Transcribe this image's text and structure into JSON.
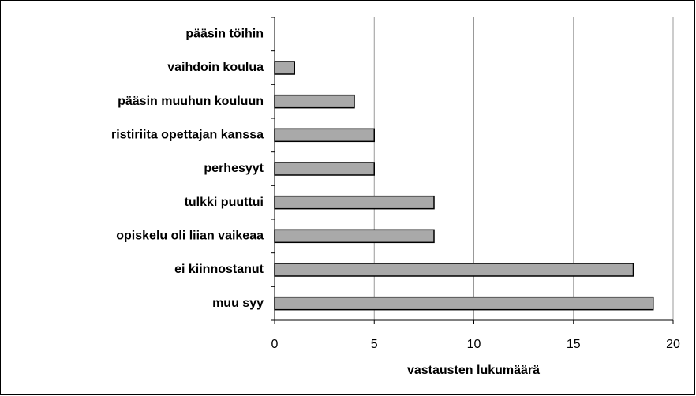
{
  "chart_data": {
    "type": "bar",
    "orientation": "horizontal",
    "x_label": "vastausten lukumäärä",
    "categories": [
      "pääsin töihin",
      "vaihdoin koulua",
      "pääsin muuhun kouluun",
      "ristiriita opettajan kanssa",
      "perhesyyt",
      "tulkki puuttui",
      "opiskelu oli liian vaikeaa",
      "ei kiinnostanut",
      "muu syy"
    ],
    "values": [
      0,
      1,
      4,
      5,
      5,
      8,
      8,
      18,
      19
    ],
    "color": "#a9a9a9",
    "xlim": [
      0,
      20
    ],
    "xticks": [
      0,
      5,
      10,
      15,
      20
    ],
    "grid": true
  }
}
